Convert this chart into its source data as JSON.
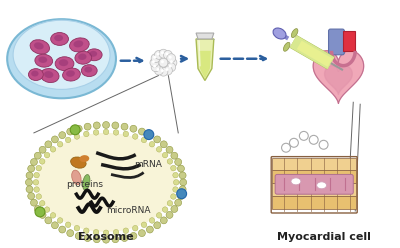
{
  "background_color": "#ffffff",
  "label_exosome": "Exosome",
  "label_myocardial": "Myocardial cell",
  "label_proteins": "proteins",
  "label_mrna": "mRNA",
  "label_microrna": "microRNA",
  "arrow_color": "#2b5f9e",
  "petri_dish_fill": "#b8ddf0",
  "petri_rim_fill": "#cce8f8",
  "petri_edge": "#7ab8d4",
  "cell_fill": "#c0508a",
  "cell_edge": "#903060",
  "exo_small_fill": "#f0f0f0",
  "exo_small_edge": "#bbbbbb",
  "tube_body": "#e8f0b0",
  "tube_liquid": "#d8e880",
  "tube_cap": "#e8e8e8",
  "exo_outer": "#c8cc88",
  "exo_inner": "#f8f4d8",
  "exo_bead": "#b0b860",
  "exo_blue_dot": "#4488cc",
  "exo_green_dot": "#88bb44",
  "heart_main": "#f0a8b8",
  "heart_edge": "#c07090",
  "heart_red": "#e03040",
  "heart_blue": "#8090c8",
  "syringe_body": "#d8e890",
  "syringe_plunger": "#8888cc",
  "syringe_barrel_edge": "#aabb55",
  "mc_fiber1": "#f0d090",
  "mc_fiber2": "#e8c070",
  "mc_pink": "#d898b0",
  "mc_edge": "#886040",
  "connector_color": "#666666",
  "label_fontsize": 7,
  "label_fontsize_inner": 6
}
